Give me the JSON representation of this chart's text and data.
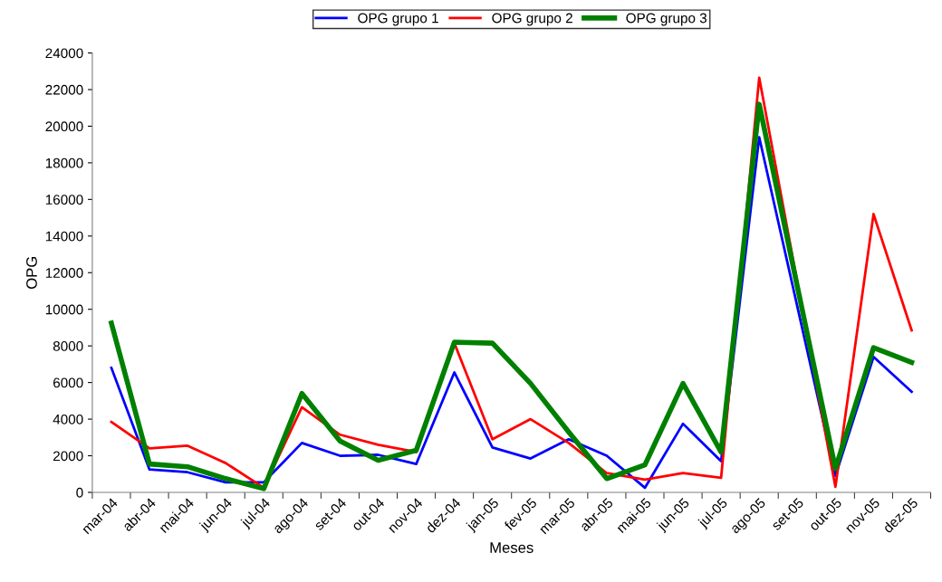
{
  "chart_data": {
    "type": "line",
    "xlabel": "Meses",
    "ylabel": "OPG",
    "categories": [
      "mar-04",
      "abr-04",
      "mai-04",
      "jun-04",
      "jul-04",
      "ago-04",
      "set-04",
      "out-04",
      "nov-04",
      "dez-04",
      "jan-05",
      "fev-05",
      "mar-05",
      "abr-05",
      "mai-05",
      "jun-05",
      "jul-05",
      "ago-05",
      "set-05",
      "out-05",
      "nov-05",
      "dez-05"
    ],
    "series": [
      {
        "name": "OPG grupo 1",
        "color": "#0000ff",
        "values": [
          6800,
          1250,
          1100,
          550,
          550,
          2700,
          2000,
          2050,
          1550,
          6550,
          2450,
          1850,
          2900,
          2000,
          250,
          3750,
          1700,
          19400,
          10150,
          900,
          7400,
          5500
        ]
      },
      {
        "name": "OPG grupo 2",
        "color": "#ff0000",
        "values": [
          3850,
          2400,
          2550,
          1600,
          250,
          4650,
          3150,
          2600,
          2200,
          8150,
          2900,
          4000,
          2700,
          1050,
          700,
          1050,
          800,
          22650,
          null,
          300,
          15200,
          8850
        ]
      },
      {
        "name": "OPG grupo 3",
        "color": "#008000",
        "values": [
          9250,
          1550,
          1400,
          750,
          200,
          5400,
          2800,
          1750,
          2300,
          8200,
          8150,
          5950,
          3300,
          750,
          1500,
          5950,
          2200,
          21200,
          11250,
          1300,
          7900,
          7100
        ]
      }
    ],
    "ylim": [
      0,
      24000
    ],
    "yticks": [
      0,
      2000,
      4000,
      6000,
      8000,
      10000,
      12000,
      14000,
      16000,
      18000,
      20000,
      22000,
      24000
    ],
    "grid": false,
    "legend": "top",
    "marker": "none",
    "line_style": "solid"
  }
}
